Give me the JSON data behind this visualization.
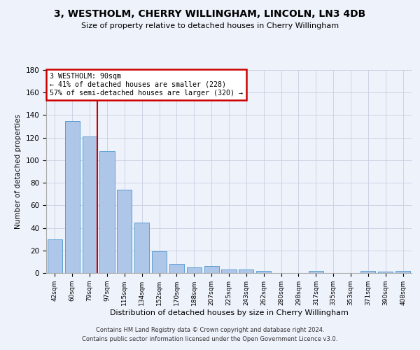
{
  "title": "3, WESTHOLM, CHERRY WILLINGHAM, LINCOLN, LN3 4DB",
  "subtitle": "Size of property relative to detached houses in Cherry Willingham",
  "xlabel": "Distribution of detached houses by size in Cherry Willingham",
  "ylabel": "Number of detached properties",
  "categories": [
    "42sqm",
    "60sqm",
    "79sqm",
    "97sqm",
    "115sqm",
    "134sqm",
    "152sqm",
    "170sqm",
    "188sqm",
    "207sqm",
    "225sqm",
    "243sqm",
    "262sqm",
    "280sqm",
    "298sqm",
    "317sqm",
    "335sqm",
    "353sqm",
    "371sqm",
    "390sqm",
    "408sqm"
  ],
  "values": [
    30,
    135,
    121,
    108,
    74,
    45,
    19,
    8,
    5,
    6,
    3,
    3,
    2,
    0,
    0,
    2,
    0,
    0,
    2,
    1,
    2
  ],
  "bar_color": "#aec6e8",
  "bar_edge_color": "#5a9fd4",
  "vline_x_index": 2,
  "vline_color": "#cc0000",
  "ylim": [
    0,
    180
  ],
  "yticks": [
    0,
    20,
    40,
    60,
    80,
    100,
    120,
    140,
    160,
    180
  ],
  "annotation_title": "3 WESTHOLM: 90sqm",
  "annotation_line1": "← 41% of detached houses are smaller (228)",
  "annotation_line2": "57% of semi-detached houses are larger (320) →",
  "annotation_box_color": "#cc0000",
  "footer_line1": "Contains HM Land Registry data © Crown copyright and database right 2024.",
  "footer_line2": "Contains public sector information licensed under the Open Government Licence v3.0.",
  "bg_color": "#eef2fb",
  "grid_color": "#c8cfe0"
}
